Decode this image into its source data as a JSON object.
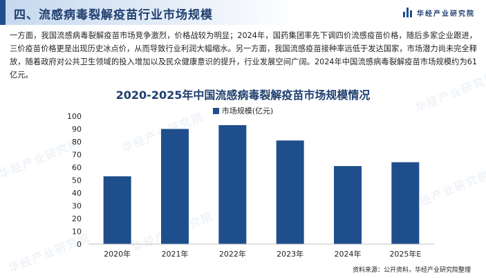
{
  "header": {
    "title": "四、流感病毒裂解疫苗行业市场规模",
    "brand": "华经产业研究院"
  },
  "intro": "一方面，我国流感病毒裂解疫苗市场竞争激烈，价格战较为明显；2024年，国药集团率先下调四价流感疫苗价格，随后多家企业跟进，三价疫苗价格更是出现历史冰点价，从而导致行业利润大幅缩水。另一方面，我国流感疫苗接种率远低于发达国家，市场潜力尚未完全释放，随着政府对公共卫生领域的投入增加以及民众健康意识的提升，行业发展空间广阔。2024年中国流感病毒裂解疫苗市场规模约为61亿元。",
  "source": "资料来源：公开资料，华经产业研究院整理",
  "colors": {
    "bar": "#1f4e8c",
    "title": "#1f3f6e",
    "accent": "#1f4e8c"
  },
  "chart_data": {
    "type": "bar",
    "title": "2020-2025年中国流感病毒裂解疫苗市场规模情况",
    "categories": [
      "2020年",
      "2021年",
      "2022年",
      "2023年",
      "2024年",
      "2025年E"
    ],
    "series": [
      {
        "name": "市场规模(亿元)",
        "values": [
          53,
          90,
          93,
          81,
          61,
          64
        ]
      }
    ],
    "yticks": [
      0,
      10,
      20,
      30,
      40,
      50,
      60,
      70,
      80,
      90,
      100
    ],
    "ylim": [
      0,
      100
    ],
    "legend_position": "top",
    "grid": false,
    "xlabel": "",
    "ylabel": ""
  }
}
